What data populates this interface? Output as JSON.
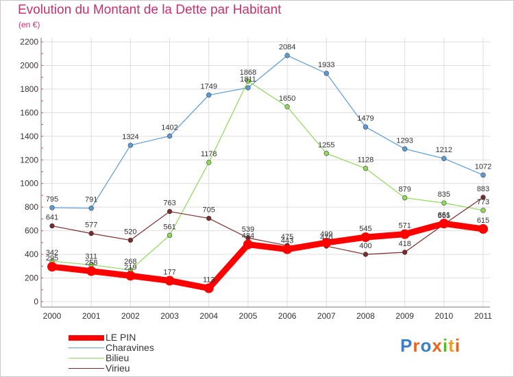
{
  "title": "Evolution du Montant de la Dette par Habitant",
  "subtitle": "(en €)",
  "logo": {
    "text": "Proxiti",
    "letter_colors": [
      "#3a7fc8",
      "#e8631c",
      "#3a7fc8",
      "#e8631c",
      "#5cb82e",
      "#e8a21c",
      "#e8631c"
    ]
  },
  "chart_data": {
    "type": "line",
    "categories": [
      "2000",
      "2001",
      "2002",
      "2003",
      "2004",
      "2005",
      "2006",
      "2007",
      "2008",
      "2009",
      "2010",
      "2011"
    ],
    "ylim": [
      0,
      2200
    ],
    "yticks": [
      "0",
      "200",
      "400",
      "600",
      "800",
      "1000",
      "1200",
      "1400",
      "1600",
      "1800",
      "2000",
      "2200"
    ],
    "grid": true,
    "legend_position": "bottom-left",
    "series": [
      {
        "name": "LE PIN",
        "color": "#ff0000",
        "values": [
          295,
          258,
          219,
          177,
          113,
          484,
          443,
          499,
          545,
          571,
          661,
          615
        ]
      },
      {
        "name": "Charavines",
        "color": "#5b9bd5",
        "values": [
          795,
          791,
          1324,
          1402,
          1749,
          1811,
          2084,
          1933,
          1479,
          1293,
          1212,
          1072
        ]
      },
      {
        "name": "Bilieu",
        "color": "#8fd85a",
        "values": [
          342,
          311,
          268,
          561,
          1178,
          1868,
          1650,
          1255,
          1128,
          879,
          835,
          773
        ]
      },
      {
        "name": "Virieu",
        "color": "#7a2a2a",
        "values": [
          641,
          577,
          520,
          763,
          705,
          539,
          475,
          470,
          400,
          418,
          655,
          883
        ]
      }
    ]
  }
}
